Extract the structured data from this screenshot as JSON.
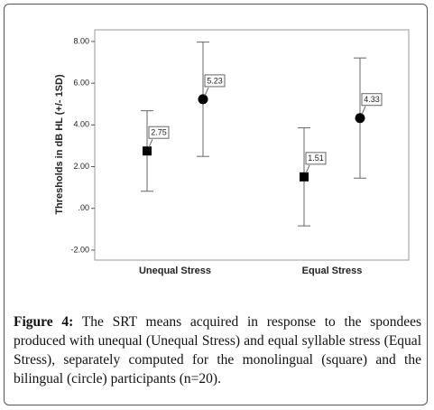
{
  "chart_data": {
    "type": "errorbar",
    "y_label": "Thresholds in dB HL (+/- 1SD)",
    "categories": [
      "Unequal Stress",
      "Equal Stress"
    ],
    "series": [
      {
        "marker": "square",
        "color": "#000000",
        "values": [
          2.75,
          1.51
        ],
        "errors": [
          1.93,
          2.35
        ]
      },
      {
        "marker": "circle",
        "color": "#000000",
        "values": [
          5.23,
          4.33
        ],
        "errors": [
          2.74,
          2.88
        ]
      }
    ],
    "ylim": [
      -2.48,
      8.56
    ],
    "yticks": [
      {
        "value": 8,
        "label": "8.00"
      },
      {
        "value": 6,
        "label": "6.00"
      },
      {
        "value": 4,
        "label": "4.00"
      },
      {
        "value": 2,
        "label": "2.00"
      },
      {
        "value": 0,
        "label": ".00"
      },
      {
        "value": -2,
        "label": "-2.00"
      }
    ],
    "data_labels": true
  },
  "caption": {
    "label": "Figure 4:",
    "text": "The SRT means acquired in response to the spondees produced with unequal (Unequal Stress) and equal syllable stress (Equal Stress), separately computed for the monolingual (square) and the bilingual (circle) participants (n=20)."
  }
}
